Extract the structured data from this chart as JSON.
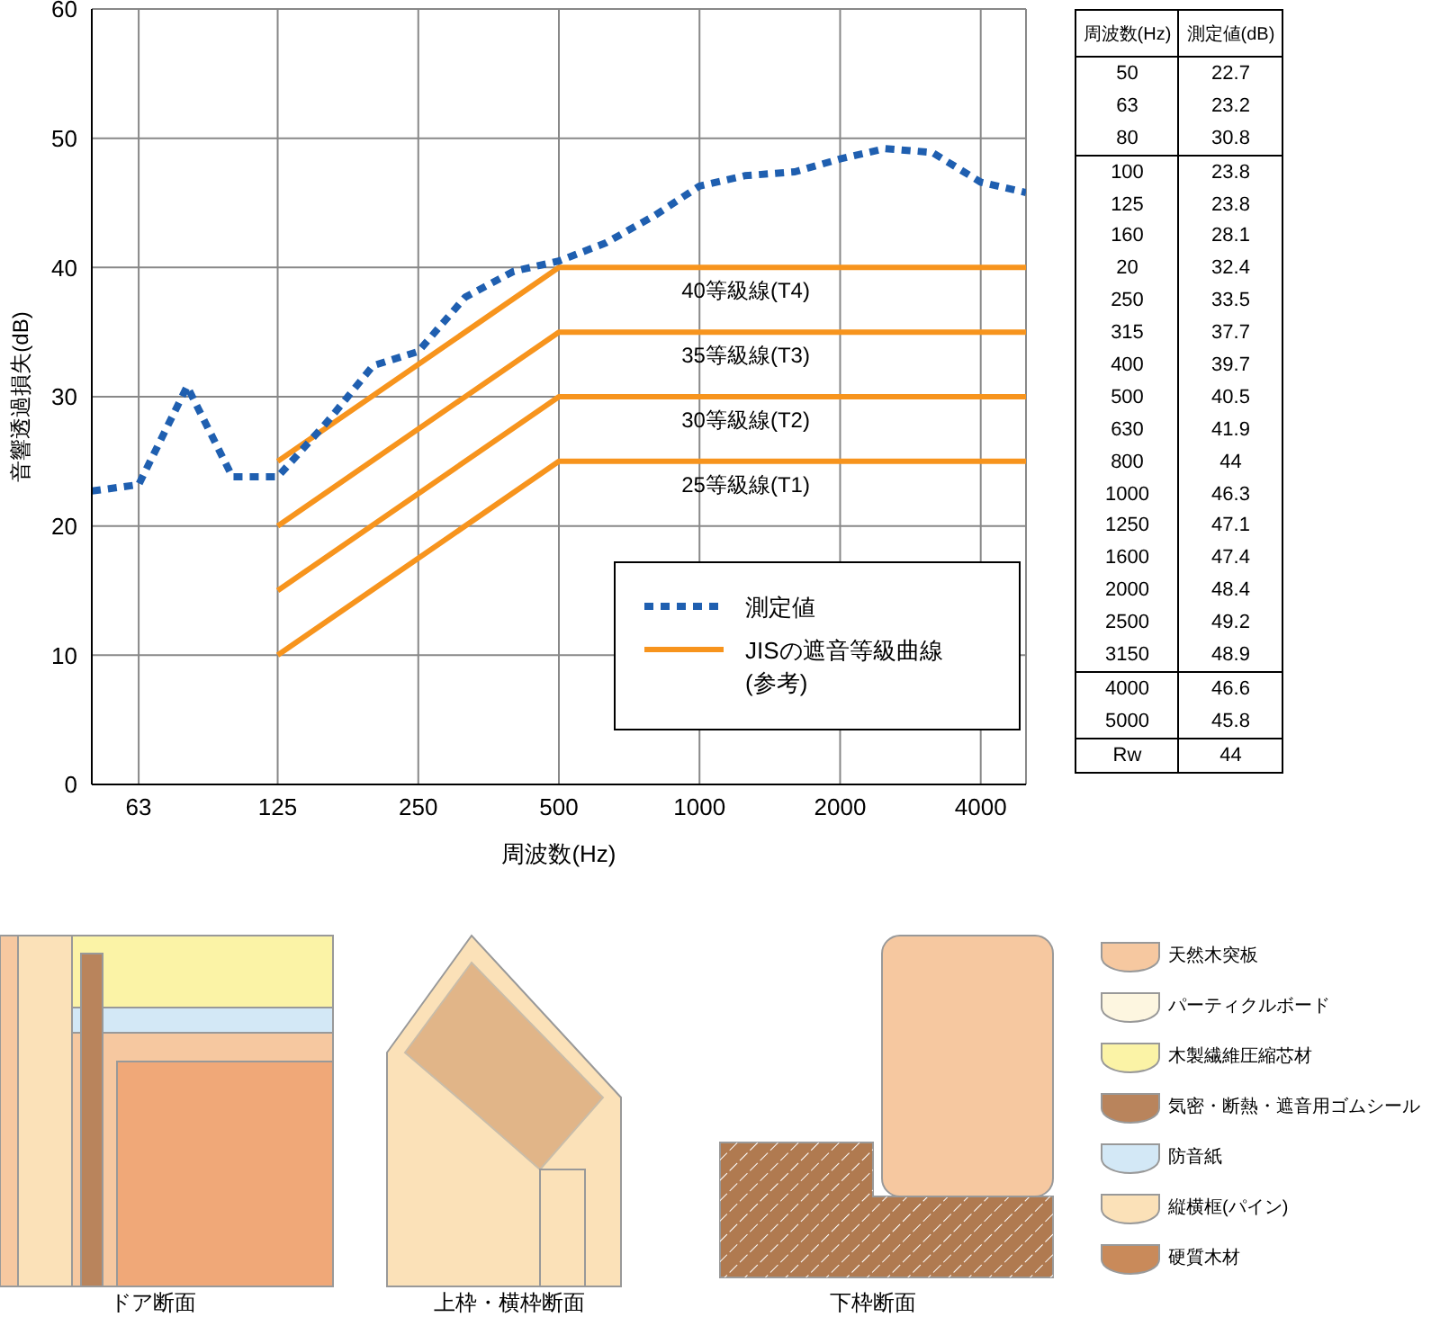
{
  "chart_data": [
    {
      "type": "line",
      "xlabel": "周波数(Hz)",
      "ylabel": "音響透過損失(dB)",
      "log": "x",
      "xlim": [
        50,
        5000
      ],
      "xticks": [
        63,
        125,
        250,
        500,
        1000,
        2000,
        4000
      ],
      "ylim": [
        0,
        60
      ],
      "yticks": [
        0,
        10,
        20,
        30,
        40,
        50,
        60
      ],
      "grid": true,
      "legend": "bottom right",
      "marker": "none",
      "series": [
        {
          "name": "測定値",
          "color": "#1f5fb0",
          "line_style": "dotted",
          "x": [
            50,
            63,
            80,
            100,
            125,
            160,
            200,
            250,
            315,
            400,
            500,
            630,
            800,
            1000,
            1250,
            1600,
            2000,
            2500,
            3150,
            4000,
            5000
          ],
          "values": [
            22.7,
            23.2,
            30.8,
            23.8,
            23.8,
            28.1,
            32.4,
            33.5,
            37.7,
            39.7,
            40.5,
            41.9,
            44,
            46.3,
            47.1,
            47.4,
            48.4,
            49.2,
            48.9,
            46.6,
            45.8
          ]
        },
        {
          "name": "JISの遮音等級曲線(参考)",
          "color": "#f7941d",
          "line_style": "solid",
          "x": [
            125,
            500,
            5000
          ],
          "values": [
            10,
            25,
            25
          ]
        },
        {
          "color": "#f7941d",
          "line_style": "solid",
          "x": [
            125,
            500,
            5000
          ],
          "values": [
            15,
            30,
            30
          ]
        },
        {
          "color": "#f7941d",
          "line_style": "solid",
          "x": [
            125,
            500,
            5000
          ],
          "values": [
            20,
            35,
            35
          ]
        },
        {
          "color": "#f7941d",
          "line_style": "solid",
          "x": [
            125,
            500,
            5000
          ],
          "values": [
            25,
            40,
            40
          ]
        }
      ],
      "annotations": [
        {
          "text": "40等級線(T4)",
          "y": 40
        },
        {
          "text": "35等級線(T3)",
          "y": 35
        },
        {
          "text": "30等級線(T2)",
          "y": 30
        },
        {
          "text": "25等級線(T1)",
          "y": 25
        },
        "ドア断面",
        "上枠・横枠断面",
        "下枠断面",
        "天然木突板",
        "パーティクルボード",
        "木製繊維圧縮芯材",
        "気密・断熱・遮音用ゴムシール",
        "防音紙",
        "縦横框(パイン)",
        "硬質木材"
      ]
    },
    {
      "type": "other",
      "annotations": [
        "周波数(Hz)",
        "測定値(dB)",
        "50",
        "22.7",
        "63",
        "23.2",
        "80",
        "30.8",
        "100",
        "23.8",
        "125",
        "23.8",
        "160",
        "28.1",
        "20",
        "32.4",
        "250",
        "33.5",
        "315",
        "37.7",
        "400",
        "39.7",
        "500",
        "40.5",
        "630",
        "41.9",
        "800",
        "44",
        "1000",
        "46.3",
        "1250",
        "47.1",
        "1600",
        "47.4",
        "2000",
        "48.4",
        "2500",
        "49.2",
        "3150",
        "48.9",
        "4000",
        "46.6",
        "5000",
        "45.8",
        "Rw",
        "44"
      ]
    }
  ]
}
